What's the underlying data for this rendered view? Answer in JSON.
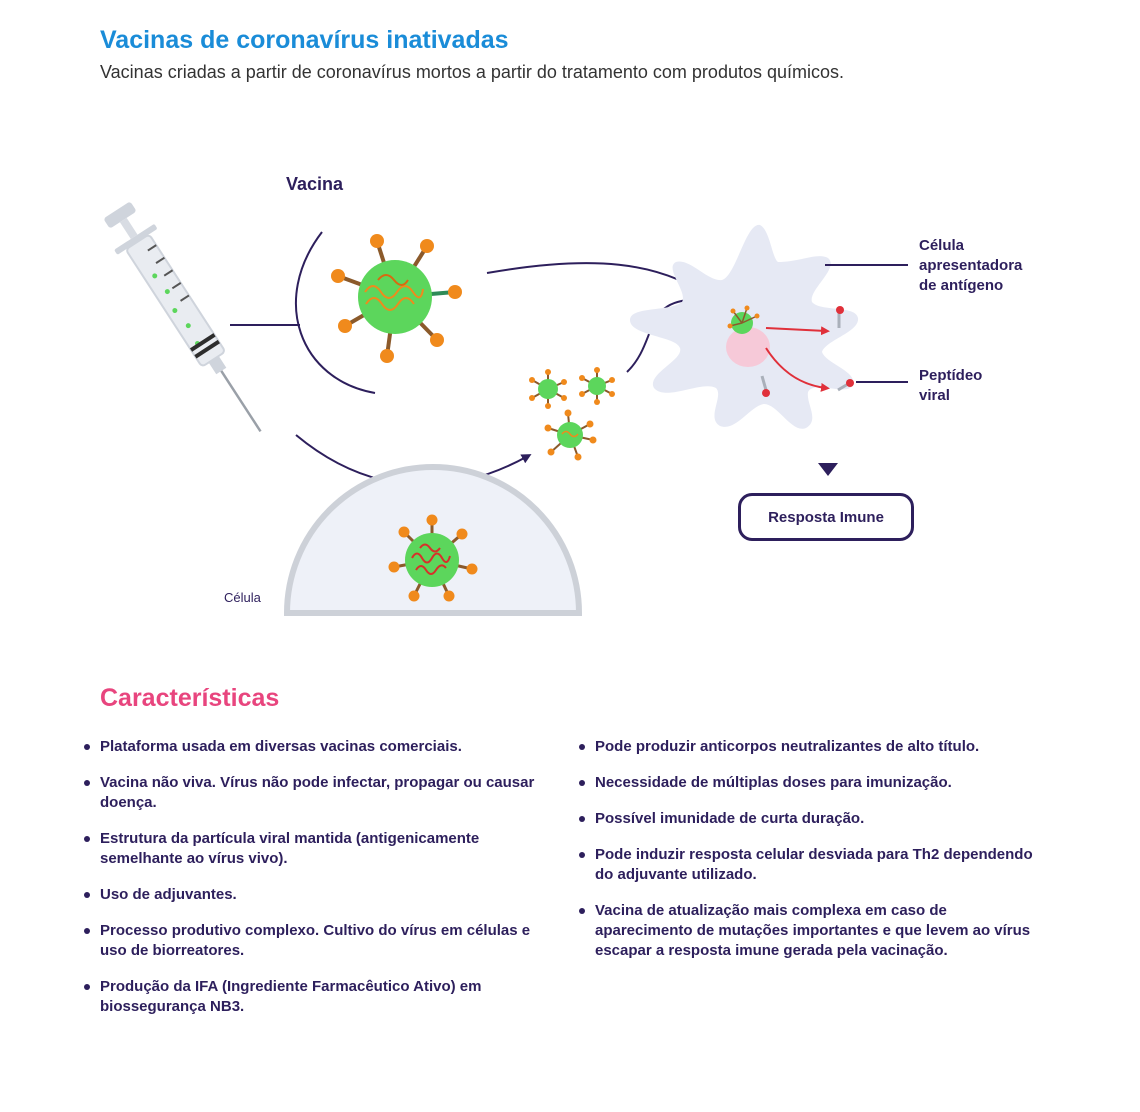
{
  "header": {
    "title": "Vacinas de coronavírus inativadas",
    "subtitle": "Vacinas criadas a partir de coronavírus mortos a partir do tratamento com produtos químicos."
  },
  "diagram": {
    "vaccine_label": "Vacina",
    "cell_label": "Célula",
    "apc_label_lines": [
      "Célula",
      "apresentadora",
      "de antígeno"
    ],
    "peptide_label_lines": [
      "Peptídeo",
      "viral"
    ],
    "immune_response": "Resposta Imune"
  },
  "characteristics": {
    "title": "Características",
    "left": [
      "Plataforma usada em diversas vacinas comerciais.",
      "Vacina não viva. Vírus não pode infectar, propagar ou causar doença.",
      "Estrutura da partícula viral mantida (antigenicamente semelhante ao vírus vivo).",
      "Uso de adjuvantes.",
      "Processo produtivo complexo. Cultivo do vírus em células e uso de biorreatores.",
      "Produção da IFA (Ingrediente Farmacêutico Ativo) em biossegurança NB3."
    ],
    "right": [
      "Pode produzir anticorpos neutralizantes de alto título.",
      "Necessidade de múltiplas doses para imunização.",
      "Possível imunidade de curta duração.",
      "Pode induzir resposta celular desviada para Th2 dependendo do adjuvante utilizado.",
      "Vacina de atualização mais complexa em caso de aparecimento de mutações importantes e que levem ao vírus escapar a resposta imune gerada pela vacinação."
    ]
  },
  "colors": {
    "title": "#1a8cd8",
    "section_title": "#e8457e",
    "text": "#2d1f5c",
    "virus_body": "#5cd65c",
    "virus_spike": "#f08a1c"
  }
}
